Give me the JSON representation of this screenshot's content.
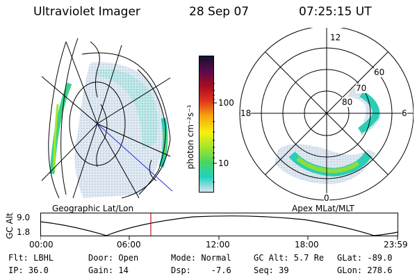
{
  "header": {
    "instrument": "Ultraviolet Imager",
    "date": "28 Sep 07",
    "time": "07:25:15 UT"
  },
  "left_map": {
    "label": "Geographic Lat/Lon"
  },
  "right_map": {
    "label": "Apex MLat/MLT",
    "mlt_labels": {
      "top": "12",
      "left": "18",
      "right": "6",
      "bottom": "0"
    },
    "lat_labels": [
      "60",
      "70",
      "80"
    ]
  },
  "colorbar": {
    "unit_label": "photon cm⁻²s⁻¹",
    "ticks": [
      "100",
      "10"
    ],
    "scale": "log",
    "colors": [
      "#d8e3ee",
      "#1fd1c1",
      "#4ad660",
      "#a4e62c",
      "#f8f00c",
      "#f6a40c",
      "#e0341c",
      "#a80c20",
      "#5c0a4c",
      "#16102e"
    ]
  },
  "orbit_plot": {
    "ylabel": "GC Alt",
    "ytick_high": "9.0",
    "ytick_low": "1.8",
    "xticks": [
      "00:00",
      "06:00",
      "12:00",
      "18:00",
      "23:59"
    ],
    "current_time_marker_color": "#c8141e"
  },
  "status": {
    "flt": "Flt: LBHL",
    "ip": "IP: 36.0",
    "door": "Door: Open",
    "gain": "Gain: 14",
    "mode": "Mode: Normal",
    "dsp": "Dsp:    -7.6",
    "gc_alt": "GC Alt: 5.7 Re",
    "seq": "Seq: 39",
    "glat": "GLat: -89.0",
    "glon": "GLon: 278.6"
  }
}
